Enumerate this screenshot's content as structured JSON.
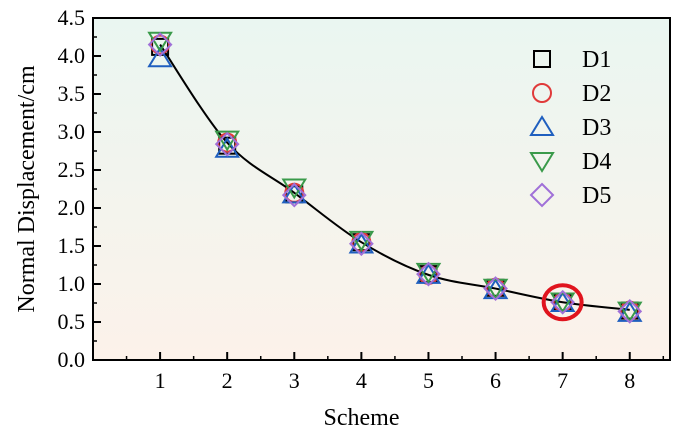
{
  "chart_data": {
    "type": "scatter",
    "xlabel": "Scheme",
    "ylabel": "Normal Displacement/cm",
    "xlim": [
      0,
      8.6
    ],
    "ylim": [
      0,
      4.5
    ],
    "x_ticks": [
      1,
      2,
      3,
      4,
      5,
      6,
      7,
      8
    ],
    "x_tick_labels": [
      "1",
      "2",
      "3",
      "4",
      "5",
      "6",
      "7",
      "8"
    ],
    "y_ticks": [
      0,
      0.5,
      1.0,
      1.5,
      2.0,
      2.5,
      3.0,
      3.5,
      4.0,
      4.5
    ],
    "y_tick_labels": [
      "0.0",
      "0.5",
      "1.0",
      "1.5",
      "2.0",
      "2.5",
      "3.0",
      "3.5",
      "4.0",
      "4.5"
    ],
    "grid": false,
    "legend_position": "right",
    "background": "gradient light mint to light peach",
    "series": [
      {
        "name": "D1",
        "marker": "square",
        "color": "#000000",
        "x": [
          1,
          2,
          3,
          4,
          5,
          6,
          7,
          8
        ],
        "values": [
          4.12,
          2.82,
          2.18,
          1.55,
          1.13,
          0.95,
          0.76,
          0.65
        ]
      },
      {
        "name": "D2",
        "marker": "circle",
        "color": "#e03a3a",
        "x": [
          1,
          2,
          3,
          4,
          5,
          6,
          7,
          8
        ],
        "values": [
          4.15,
          2.86,
          2.2,
          1.55,
          1.12,
          0.95,
          0.76,
          0.65
        ]
      },
      {
        "name": "D3",
        "marker": "triangle-up",
        "color": "#1f5fbf",
        "x": [
          1,
          2,
          3,
          4,
          5,
          6,
          7,
          8
        ],
        "values": [
          3.97,
          2.78,
          2.18,
          1.52,
          1.12,
          0.92,
          0.75,
          0.62
        ]
      },
      {
        "name": "D4",
        "marker": "triangle-down",
        "color": "#3a9a4a",
        "x": [
          1,
          2,
          3,
          4,
          5,
          6,
          7,
          8
        ],
        "values": [
          4.2,
          2.9,
          2.27,
          1.58,
          1.16,
          0.95,
          0.77,
          0.65
        ]
      },
      {
        "name": "D5",
        "marker": "diamond",
        "color": "#a070d8",
        "x": [
          1,
          2,
          3,
          4,
          5,
          6,
          7,
          8
        ],
        "values": [
          4.15,
          2.84,
          2.17,
          1.53,
          1.13,
          0.94,
          0.76,
          0.64
        ]
      }
    ],
    "fit_line": {
      "color": "#000000",
      "x": [
        1,
        2,
        3,
        4,
        5,
        6,
        7,
        8
      ],
      "values": [
        4.15,
        2.86,
        2.2,
        1.55,
        1.12,
        0.94,
        0.76,
        0.66
      ]
    },
    "highlight": {
      "x": 7,
      "y": 0.76,
      "color": "#e0141e",
      "shape": "ellipse"
    }
  }
}
